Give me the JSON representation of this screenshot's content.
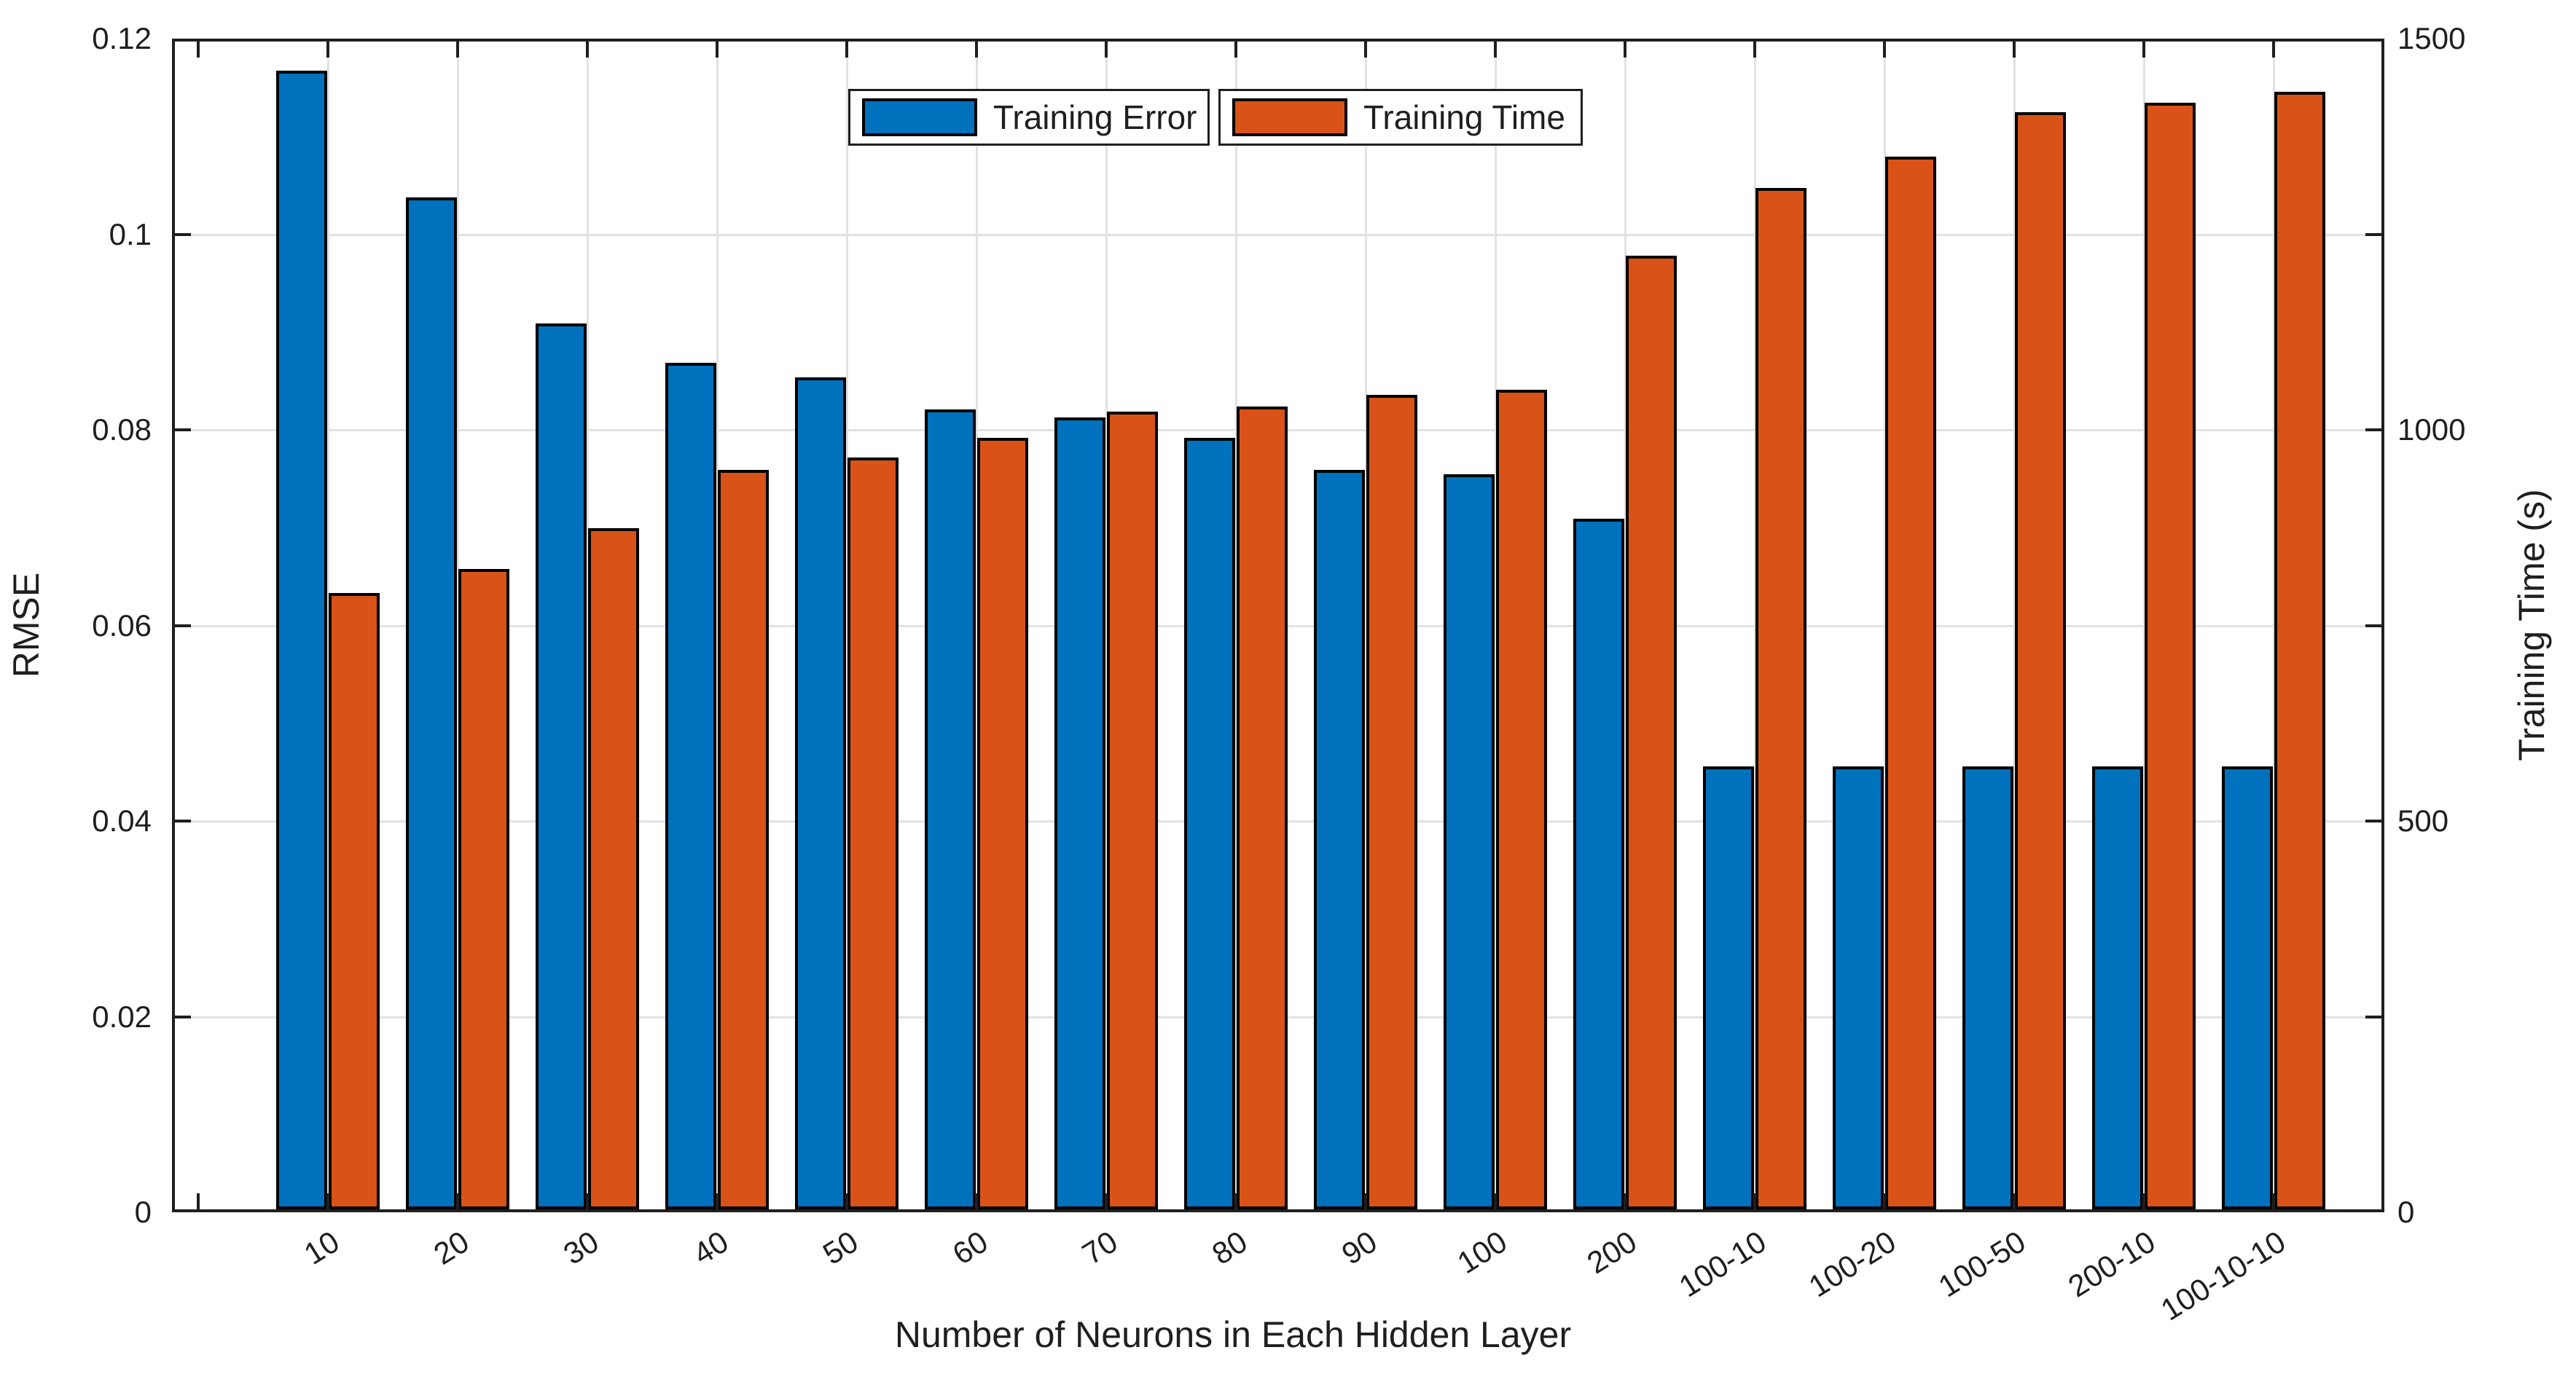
{
  "chart_data": {
    "type": "bar",
    "title": "",
    "categories": [
      "10",
      "20",
      "30",
      "40",
      "50",
      "60",
      "70",
      "80",
      "90",
      "100",
      "200",
      "100-10",
      "100-20",
      "100-50",
      "200-10",
      "100-10-10"
    ],
    "series": [
      {
        "name": "Training Error",
        "axis": "left",
        "color": "#0072BD",
        "values": [
          0.117,
          0.104,
          0.091,
          0.087,
          0.0855,
          0.0822,
          0.0814,
          0.0793,
          0.076,
          0.0755,
          0.071,
          0.0455,
          0.0455,
          0.0455,
          0.0455,
          0.0455
        ]
      },
      {
        "name": "Training Time",
        "axis": "right",
        "color": "#D95319",
        "values": [
          792,
          823,
          875,
          950,
          966,
          991,
          1025,
          1031,
          1046,
          1053,
          1225,
          1312,
          1352,
          1409,
          1421,
          1435
        ]
      }
    ],
    "left_axis": {
      "label": "RMSE",
      "min": 0,
      "max": 0.12,
      "ticks": [
        0,
        0.02,
        0.04,
        0.06,
        0.08,
        0.1,
        0.12
      ],
      "tick_labels": [
        "0",
        "0.02",
        "0.04",
        "0.06",
        "0.08",
        "0.1",
        "0.12"
      ]
    },
    "right_axis": {
      "label": "Training Time (s)",
      "min": 0,
      "max": 1500,
      "ticks": [
        0,
        500,
        1000,
        1500
      ],
      "tick_labels": [
        "0",
        "500",
        "1000",
        "1500"
      ]
    },
    "x_axis": {
      "label": "Number of Neurons in Each Hidden Layer"
    },
    "legend": {
      "position": "top-center",
      "entries": [
        "Training Error",
        "Training Time"
      ]
    },
    "grid": true,
    "bar_edge_color": "#000000",
    "grid_color": "#e2e2e2",
    "axis_color": "#1f1f1f"
  }
}
